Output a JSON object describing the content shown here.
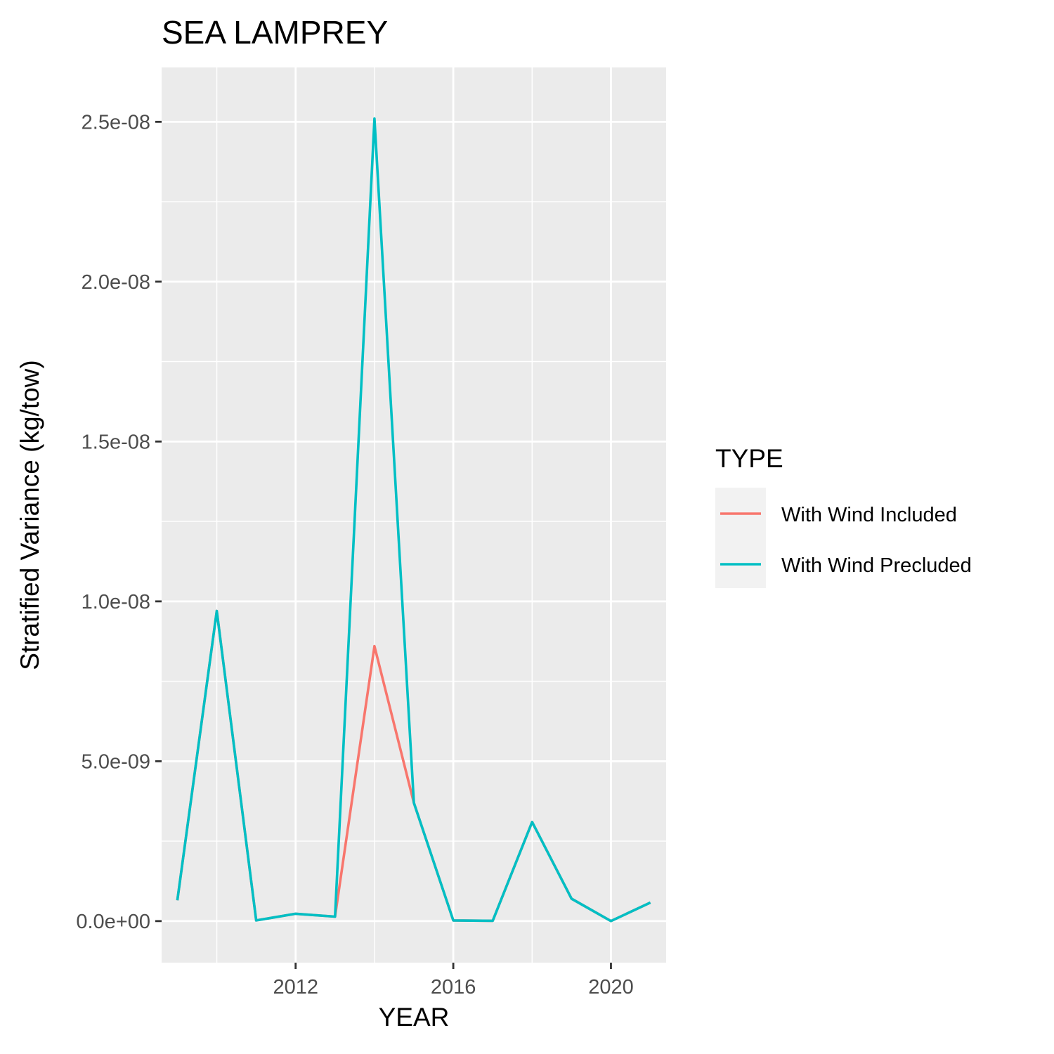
{
  "chart_data": {
    "type": "line",
    "title": "SEA LAMPREY",
    "xlabel": "YEAR",
    "ylabel": "Stratified Variance (kg/tow)",
    "xlim": [
      2008.6,
      2021.4
    ],
    "ylim": [
      -1.3e-09,
      2.67e-08
    ],
    "x_ticks": [
      2012,
      2016,
      2020
    ],
    "x_tick_labels": [
      "2012",
      "2016",
      "2020"
    ],
    "y_ticks": [
      0,
      5e-09,
      1e-08,
      1.5e-08,
      2e-08,
      2.5e-08
    ],
    "y_tick_labels": [
      "0.0e+00",
      "5.0e-09",
      "1.0e-08",
      "1.5e-08",
      "2.0e-08",
      "2.5e-08"
    ],
    "grid": true,
    "legend": {
      "title": "TYPE",
      "position": "right"
    },
    "x": [
      2009,
      2010,
      2011,
      2012,
      2013,
      2014,
      2015,
      2016,
      2017,
      2018,
      2019,
      2020,
      2021
    ],
    "series": [
      {
        "name": "With Wind Included",
        "color": "#F8766D",
        "values": [
          6.5e-10,
          9.7e-09,
          2e-11,
          2.3e-10,
          1.4e-10,
          8.6e-09,
          3.7e-09,
          2e-11,
          1e-11,
          3.1e-09,
          7e-10,
          0,
          5.8e-10
        ]
      },
      {
        "name": "With Wind Precluded",
        "color": "#00BFC4",
        "values": [
          6.5e-10,
          9.7e-09,
          2e-11,
          2.3e-10,
          1.4e-10,
          2.51e-08,
          3.7e-09,
          2e-11,
          1e-11,
          3.1e-09,
          7e-10,
          0,
          5.8e-10
        ]
      }
    ]
  }
}
